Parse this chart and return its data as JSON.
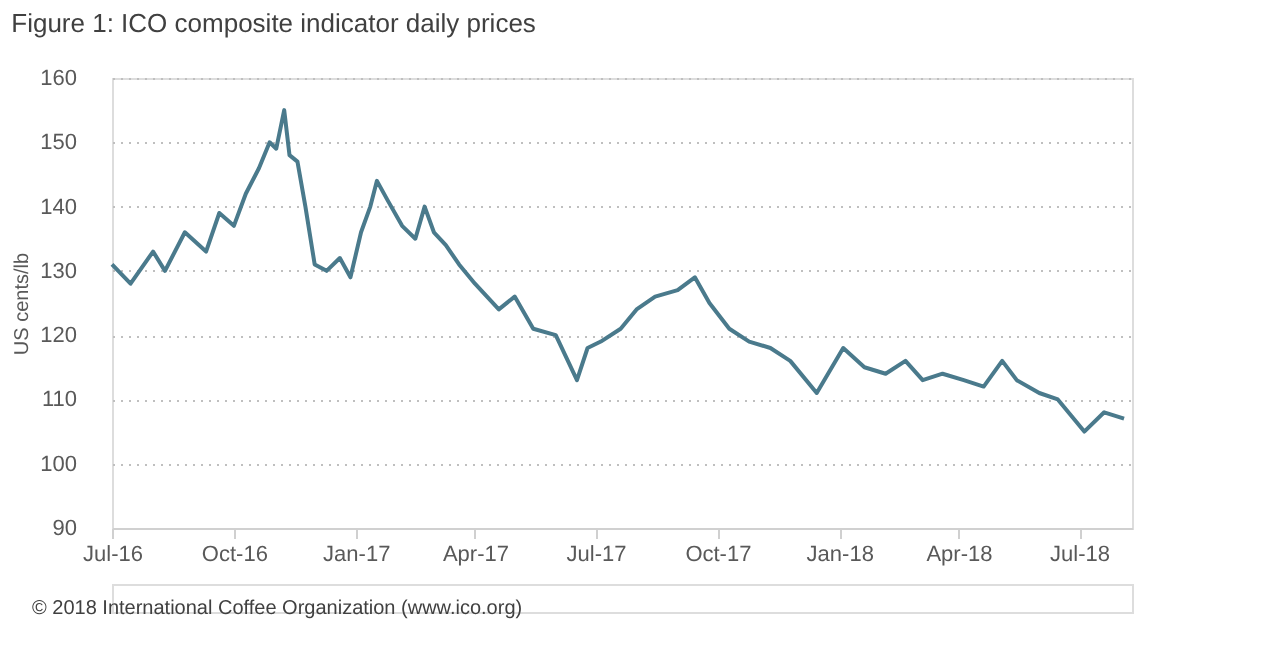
{
  "chart_data": {
    "type": "line",
    "title": "Figure 1: ICO composite indicator daily prices",
    "ylabel": "US cents/lb",
    "annotations": [
      "© 2018 International Coffee Organization (www.ico.org)"
    ],
    "x": [
      "2016-07-01",
      "2016-07-15",
      "2016-08-01",
      "2016-08-10",
      "2016-08-25",
      "2016-09-10",
      "2016-09-20",
      "2016-10-01",
      "2016-10-10",
      "2016-10-20",
      "2016-10-28",
      "2016-11-02",
      "2016-11-08",
      "2016-11-12",
      "2016-11-18",
      "2016-11-24",
      "2016-12-01",
      "2016-12-10",
      "2016-12-20",
      "2016-12-28",
      "2017-01-05",
      "2017-01-12",
      "2017-01-17",
      "2017-01-25",
      "2017-02-05",
      "2017-02-15",
      "2017-02-22",
      "2017-03-01",
      "2017-03-10",
      "2017-03-20",
      "2017-04-01",
      "2017-04-19",
      "2017-05-01",
      "2017-05-15",
      "2017-06-01",
      "2017-06-17",
      "2017-06-25",
      "2017-07-05",
      "2017-07-20",
      "2017-08-01",
      "2017-08-15",
      "2017-09-01",
      "2017-09-14",
      "2017-09-25",
      "2017-10-10",
      "2017-10-25",
      "2017-11-10",
      "2017-11-25",
      "2017-12-15",
      "2018-01-04",
      "2018-01-20",
      "2018-02-05",
      "2018-02-20",
      "2018-03-05",
      "2018-03-20",
      "2018-04-05",
      "2018-04-20",
      "2018-05-04",
      "2018-05-15",
      "2018-06-01",
      "2018-06-15",
      "2018-07-05",
      "2018-07-20",
      "2018-08-04"
    ],
    "series": [
      {
        "color": "#4a7a8c",
        "values": [
          131,
          128,
          133,
          130,
          136,
          133,
          139,
          137,
          142,
          146,
          150,
          149,
          155,
          148,
          147,
          140,
          131,
          130,
          132,
          129,
          136,
          140,
          144,
          141,
          137,
          135,
          140,
          136,
          134,
          131,
          128,
          124,
          126,
          121,
          120,
          113,
          118,
          119,
          121,
          124,
          126,
          127,
          129,
          125,
          121,
          119,
          118,
          116,
          111,
          118,
          115,
          114,
          116,
          113,
          114,
          113,
          112,
          116,
          113,
          111,
          110,
          105,
          108,
          107
        ]
      }
    ],
    "xlim": [
      "2016-07-01",
      "2018-08-10"
    ],
    "xticks": [
      {
        "value": "2016-07-01",
        "label": "Jul-16"
      },
      {
        "value": "2016-10-01",
        "label": "Oct-16"
      },
      {
        "value": "2017-01-01",
        "label": "Jan-17"
      },
      {
        "value": "2017-04-01",
        "label": "Apr-17"
      },
      {
        "value": "2017-07-01",
        "label": "Jul-17"
      },
      {
        "value": "2017-10-01",
        "label": "Oct-17"
      },
      {
        "value": "2018-01-01",
        "label": "Jan-18"
      },
      {
        "value": "2018-04-01",
        "label": "Apr-18"
      },
      {
        "value": "2018-07-01",
        "label": "Jul-18"
      }
    ],
    "ylim": [
      90,
      160
    ],
    "yticks": [
      90,
      100,
      110,
      120,
      130,
      140,
      150,
      160
    ],
    "grid": "y",
    "marker": "none",
    "line_style": "solid"
  }
}
